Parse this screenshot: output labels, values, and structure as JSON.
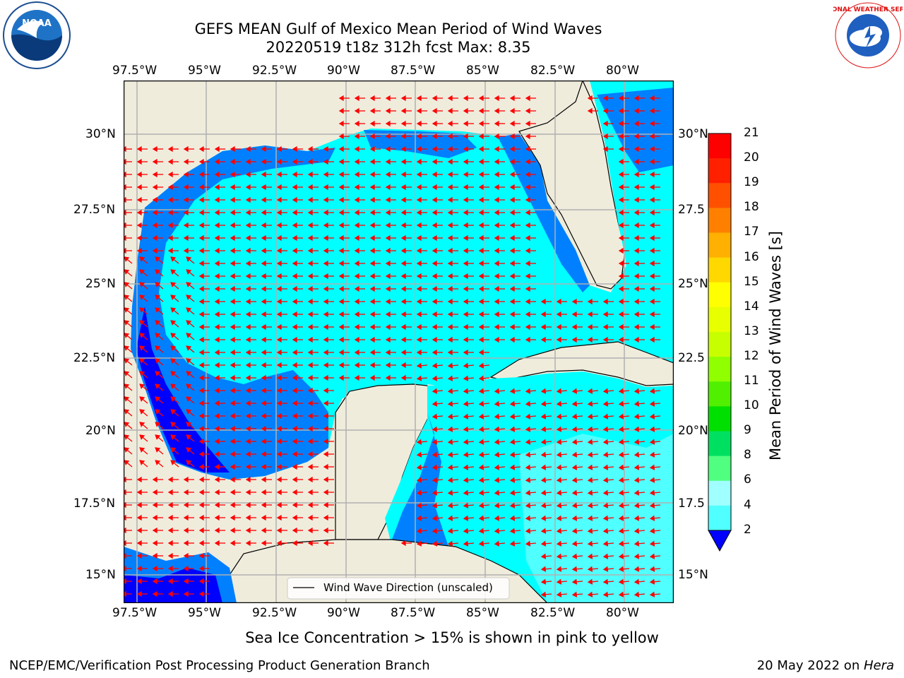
{
  "title": {
    "line1": "GEFS MEAN Gulf of Mexico Mean Period of Wind Waves",
    "line2": "20220519 t18z 312h fcst   Max: 8.35"
  },
  "logos": {
    "left": {
      "text": "NOAA",
      "ring_text": "NATIONAL OCEANIC AND ATMOSPHERIC ADMINISTRATION · U.S. DEPARTMENT OF COMMERCE"
    },
    "right": {
      "ring_text": "NATIONAL WEATHER SERVICE"
    }
  },
  "map": {
    "lon_labels": [
      "97.5°W",
      "95°W",
      "92.5°W",
      "90°W",
      "87.5°W",
      "85°W",
      "82.5°W",
      "80°W"
    ],
    "lat_labels_left": [
      "30°N",
      "27.5°N",
      "25°N",
      "22.5°N",
      "20°N",
      "17.5°N",
      "15°N"
    ],
    "lat_labels_right": [
      "30°N",
      "27.5",
      "25°N",
      "22.5",
      "20°N",
      "17.5",
      "15°N"
    ],
    "legend_label": "Wind Wave Direction (unscaled)",
    "colors": {
      "land": "#efecdc",
      "water_2_4": "#0080ff",
      "water_4_6": "#00ffff",
      "water_0_2": "#0000ff",
      "arrows": "#ff0000",
      "grid": "#b0b0b0"
    }
  },
  "colorbar": {
    "label": "Mean Period of Wind Waves [s]",
    "ticks": [
      "21",
      "20",
      "19",
      "18",
      "17",
      "16",
      "15",
      "14",
      "13",
      "12",
      "11",
      "10",
      "9",
      "8",
      "6",
      "4",
      "2"
    ],
    "colors": [
      "#ff0000",
      "#ff2000",
      "#ff5000",
      "#ff8000",
      "#ffb000",
      "#ffd800",
      "#ffff00",
      "#e8ff00",
      "#c8ff00",
      "#90ff00",
      "#50f000",
      "#00e000",
      "#00e060",
      "#50ff80",
      "#a0ffff",
      "#50ffff",
      "#00ffff",
      "#0080ff",
      "#0000ff"
    ]
  },
  "note": "Sea Ice Concentration > 15% is shown in pink to yellow",
  "footer": {
    "left": "NCEP/EMC/Verification Post Processing Product Generation Branch",
    "right_prefix": "20 May 2022 on ",
    "right_machine": "Hera"
  }
}
